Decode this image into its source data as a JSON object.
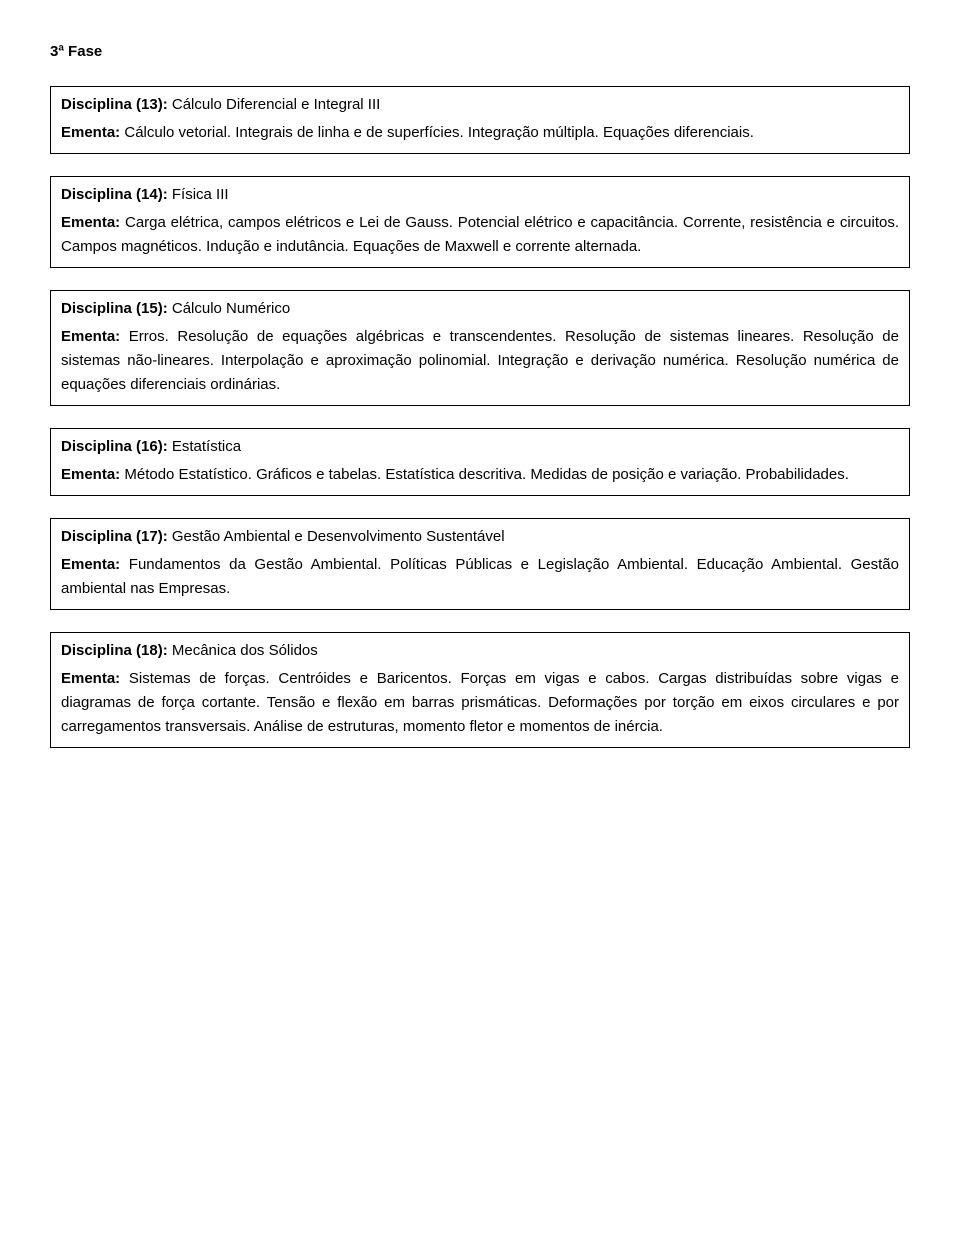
{
  "heading": "3ª Fase",
  "boxes": [
    {
      "title_prefix": "Disciplina (13): ",
      "title_text": "Cálculo Diferencial e Integral III",
      "ementa_prefix": "Ementa: ",
      "ementa_text": "Cálculo vetorial. Integrais de linha e de superfícies. Integração múltipla. Equações diferenciais."
    },
    {
      "title_prefix": "Disciplina (14): ",
      "title_text": "Física III",
      "ementa_prefix": "Ementa: ",
      "ementa_text": "Carga elétrica, campos elétricos e Lei de Gauss. Potencial elétrico e capacitância. Corrente, resistência e circuitos. Campos magnéticos. Indução e indutância. Equações de Maxwell e corrente alternada."
    },
    {
      "title_prefix": "Disciplina (15): ",
      "title_text": "Cálculo Numérico",
      "ementa_prefix": "Ementa: ",
      "ementa_text": "Erros. Resolução de equações algébricas e transcendentes. Resolução de sistemas lineares. Resolução de sistemas não-lineares. Interpolação e aproximação polinomial. Integração e derivação numérica. Resolução numérica de equações diferenciais ordinárias."
    },
    {
      "title_prefix": "Disciplina (16): ",
      "title_text": "Estatística",
      "ementa_prefix": "Ementa: ",
      "ementa_text": "Método Estatístico. Gráficos e tabelas. Estatística descritiva. Medidas de posição e variação. Probabilidades."
    },
    {
      "title_prefix": "Disciplina (17): ",
      "title_text": "Gestão Ambiental e Desenvolvimento Sustentável",
      "ementa_prefix": "Ementa: ",
      "ementa_text": "Fundamentos da Gestão Ambiental. Políticas Públicas e Legislação Ambiental. Educação Ambiental. Gestão ambiental nas Empresas."
    },
    {
      "title_prefix": "Disciplina (18): ",
      "title_text": "Mecânica dos Sólidos",
      "ementa_prefix": "Ementa: ",
      "ementa_text": "Sistemas de forças. Centróides e Baricentos. Forças em vigas e cabos. Cargas distribuídas sobre vigas e diagramas de força cortante. Tensão e flexão em barras prismáticas. Deformações por torção em eixos circulares e por carregamentos transversais. Análise de estruturas, momento fletor e momentos de inércia."
    }
  ]
}
